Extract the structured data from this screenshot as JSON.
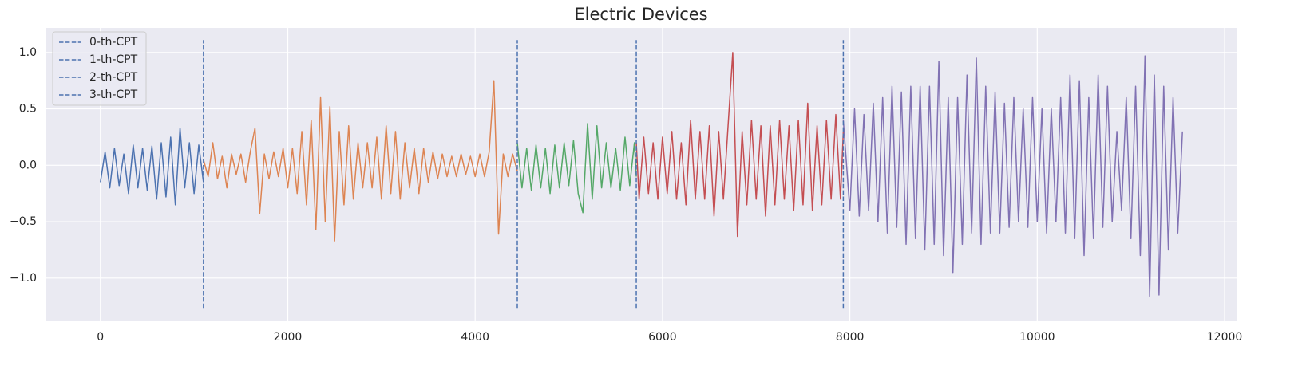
{
  "chart_data": {
    "type": "line",
    "title": "Electric Devices",
    "xlim": [
      -577.5,
      12127.5
    ],
    "ylim": [
      -1.383,
      1.218
    ],
    "xticks": [
      0,
      2000,
      4000,
      6000,
      8000,
      10000,
      12000
    ],
    "yticks": [
      {
        "value": -1.0,
        "label": "−1.0"
      },
      {
        "value": -0.5,
        "label": "−0.5"
      },
      {
        "value": 0.0,
        "label": "0.0"
      },
      {
        "value": 0.5,
        "label": "0.5"
      },
      {
        "value": 1.0,
        "label": "1.0"
      }
    ],
    "grid": true,
    "legend_position": "upper left",
    "changepoints": [
      {
        "name": "0-th-CPT",
        "x": 1100
      },
      {
        "name": "1-th-CPT",
        "x": 4450
      },
      {
        "name": "2-th-CPT",
        "x": 5720
      },
      {
        "name": "3-th-CPT",
        "x": 7930
      }
    ],
    "changepoint_color": "#4c72b0",
    "changepoint_span": [
      -1.265,
      1.11
    ],
    "series": [
      {
        "color": "#4c72b0",
        "x": [
          0,
          50,
          100,
          150,
          200,
          250,
          300,
          350,
          400,
          450,
          500,
          550,
          600,
          650,
          700,
          750,
          800,
          850,
          900,
          950,
          1000,
          1050,
          1100
        ],
        "values": [
          -0.15,
          0.12,
          -0.2,
          0.15,
          -0.18,
          0.1,
          -0.25,
          0.18,
          -0.2,
          0.15,
          -0.22,
          0.17,
          -0.3,
          0.2,
          -0.28,
          0.25,
          -0.35,
          0.33,
          -0.2,
          0.2,
          -0.25,
          0.18,
          -0.15
        ]
      },
      {
        "color": "#dd8452",
        "x": [
          1100,
          1150,
          1200,
          1250,
          1300,
          1350,
          1400,
          1450,
          1500,
          1550,
          1600,
          1650,
          1700,
          1750,
          1800,
          1850,
          1900,
          1950,
          2000,
          2050,
          2100,
          2150,
          2200,
          2250,
          2300,
          2350,
          2400,
          2450,
          2500,
          2550,
          2600,
          2650,
          2700,
          2750,
          2800,
          2850,
          2900,
          2950,
          3000,
          3050,
          3100,
          3150,
          3200,
          3250,
          3300,
          3350,
          3400,
          3450,
          3500,
          3550,
          3600,
          3650,
          3700,
          3750,
          3800,
          3850,
          3900,
          3950,
          4000,
          4050,
          4100,
          4150,
          4200,
          4250,
          4300,
          4350,
          4400,
          4450
        ],
        "values": [
          0.05,
          -0.1,
          0.2,
          -0.12,
          0.08,
          -0.2,
          0.1,
          -0.08,
          0.1,
          -0.15,
          0.12,
          0.33,
          -0.43,
          0.1,
          -0.12,
          0.12,
          -0.1,
          0.15,
          -0.2,
          0.15,
          -0.25,
          0.3,
          -0.35,
          0.4,
          -0.57,
          0.6,
          -0.5,
          0.52,
          -0.67,
          0.3,
          -0.35,
          0.35,
          -0.3,
          0.2,
          -0.2,
          0.2,
          -0.2,
          0.25,
          -0.3,
          0.35,
          -0.25,
          0.3,
          -0.3,
          0.2,
          -0.2,
          0.15,
          -0.25,
          0.15,
          -0.15,
          0.12,
          -0.12,
          0.1,
          -0.1,
          0.08,
          -0.1,
          0.1,
          -0.08,
          0.08,
          -0.1,
          0.1,
          -0.1,
          0.12,
          0.75,
          -0.61,
          0.1,
          -0.1,
          0.1,
          -0.05
        ]
      },
      {
        "color": "#55a868",
        "x": [
          4450,
          4500,
          4550,
          4600,
          4650,
          4700,
          4750,
          4800,
          4850,
          4900,
          4950,
          5000,
          5050,
          5100,
          5150,
          5200,
          5250,
          5300,
          5350,
          5400,
          5450,
          5500,
          5550,
          5600,
          5650,
          5700,
          5720
        ],
        "values": [
          0.2,
          -0.2,
          0.15,
          -0.22,
          0.18,
          -0.2,
          0.15,
          -0.25,
          0.18,
          -0.2,
          0.2,
          -0.18,
          0.22,
          -0.25,
          -0.42,
          0.37,
          -0.3,
          0.35,
          -0.2,
          0.2,
          -0.2,
          0.15,
          -0.22,
          0.25,
          -0.18,
          0.2,
          -0.1
        ]
      },
      {
        "color": "#c44e52",
        "x": [
          5720,
          5750,
          5800,
          5850,
          5900,
          5950,
          6000,
          6050,
          6100,
          6150,
          6200,
          6250,
          6300,
          6350,
          6400,
          6450,
          6500,
          6550,
          6600,
          6650,
          6700,
          6750,
          6800,
          6850,
          6900,
          6950,
          7000,
          7050,
          7100,
          7150,
          7200,
          7250,
          7300,
          7350,
          7400,
          7450,
          7500,
          7550,
          7600,
          7650,
          7700,
          7750,
          7800,
          7850,
          7900,
          7930
        ],
        "values": [
          0.2,
          -0.3,
          0.25,
          -0.25,
          0.2,
          -0.3,
          0.25,
          -0.25,
          0.3,
          -0.3,
          0.2,
          -0.35,
          0.4,
          -0.3,
          0.3,
          -0.3,
          0.35,
          -0.45,
          0.3,
          -0.3,
          0.35,
          1.0,
          -0.63,
          0.3,
          -0.35,
          0.4,
          -0.3,
          0.35,
          -0.45,
          0.35,
          -0.35,
          0.4,
          -0.3,
          0.35,
          -0.4,
          0.4,
          -0.35,
          0.55,
          -0.4,
          0.35,
          -0.35,
          0.4,
          -0.3,
          0.45,
          -0.3,
          0.3
        ]
      },
      {
        "color": "#8172b3",
        "x": [
          7930,
          8000,
          8050,
          8100,
          8150,
          8200,
          8250,
          8300,
          8350,
          8400,
          8450,
          8500,
          8550,
          8600,
          8650,
          8700,
          8750,
          8800,
          8850,
          8900,
          8950,
          9000,
          9050,
          9100,
          9150,
          9200,
          9250,
          9300,
          9350,
          9400,
          9450,
          9500,
          9550,
          9600,
          9650,
          9700,
          9750,
          9800,
          9850,
          9900,
          9950,
          10000,
          10050,
          10100,
          10150,
          10200,
          10250,
          10300,
          10350,
          10400,
          10450,
          10500,
          10550,
          10600,
          10650,
          10700,
          10750,
          10800,
          10850,
          10900,
          10950,
          11000,
          11050,
          11100,
          11150,
          11200,
          11250,
          11300,
          11350,
          11400,
          11450,
          11500,
          11550
        ],
        "values": [
          0.4,
          -0.4,
          0.5,
          -0.45,
          0.45,
          -0.4,
          0.55,
          -0.5,
          0.6,
          -0.6,
          0.7,
          -0.55,
          0.65,
          -0.7,
          0.7,
          -0.65,
          0.7,
          -0.75,
          0.7,
          -0.7,
          0.92,
          -0.8,
          0.6,
          -0.95,
          0.6,
          -0.7,
          0.8,
          -0.6,
          0.95,
          -0.7,
          0.7,
          -0.6,
          0.65,
          -0.6,
          0.55,
          -0.55,
          0.6,
          -0.5,
          0.5,
          -0.55,
          0.6,
          -0.5,
          0.5,
          -0.6,
          0.5,
          -0.5,
          0.6,
          -0.6,
          0.8,
          -0.65,
          0.75,
          -0.8,
          0.6,
          -0.65,
          0.8,
          -0.55,
          0.7,
          -0.5,
          0.3,
          -0.4,
          0.6,
          -0.65,
          0.7,
          -0.8,
          0.97,
          -1.16,
          0.8,
          -1.15,
          0.7,
          -0.75,
          0.6,
          -0.6,
          0.3
        ]
      }
    ]
  }
}
